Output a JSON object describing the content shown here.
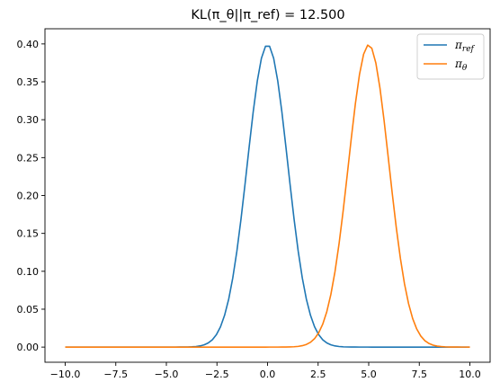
{
  "chart_data": {
    "type": "line",
    "title": "KL(π_θ||π_ref) = 12.500",
    "xlabel": "",
    "ylabel": "",
    "xlim": [
      -11,
      11
    ],
    "ylim": [
      -0.02,
      0.42
    ],
    "xticks": [
      -10,
      -7.5,
      -5,
      -2.5,
      0,
      2.5,
      5,
      7.5,
      10
    ],
    "xtick_labels": [
      "−10.0",
      "−7.5",
      "−5.0",
      "−2.5",
      "0.0",
      "2.5",
      "5.0",
      "7.5",
      "10.0"
    ],
    "yticks": [
      0,
      0.05,
      0.1,
      0.15,
      0.2,
      0.25,
      0.3,
      0.35,
      0.4
    ],
    "ytick_labels": [
      "0.00",
      "0.05",
      "0.10",
      "0.15",
      "0.20",
      "0.25",
      "0.30",
      "0.35",
      "0.40"
    ],
    "grid": false,
    "legend_position": "top-right",
    "series": [
      {
        "name": "π_ref",
        "name_base": "π",
        "name_sub": "ref",
        "color": "#1f77b4",
        "distribution": "normal",
        "mean": 0,
        "std": 1,
        "x_range": [
          -10,
          10
        ],
        "num_points": 100
      },
      {
        "name": "π_θ",
        "name_base": "π",
        "name_sub": "θ",
        "color": "#ff7f0e",
        "distribution": "normal",
        "mean": 5,
        "std": 1,
        "x_range": [
          -10,
          10
        ],
        "num_points": 100
      }
    ]
  }
}
